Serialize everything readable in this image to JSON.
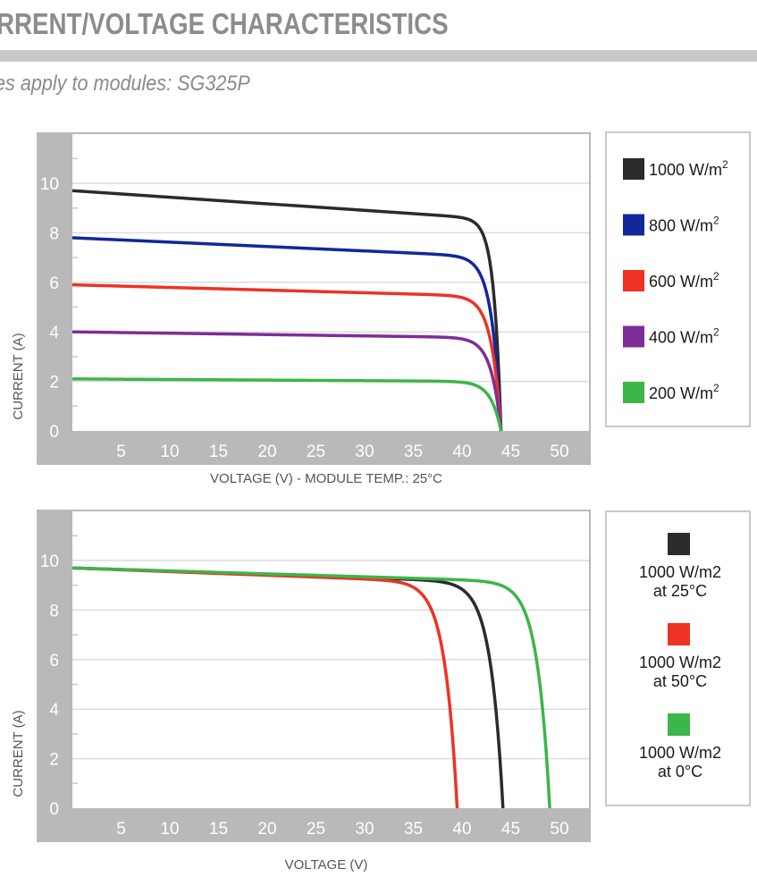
{
  "header": {
    "title": "RRENT/VOLTAGE CHARACTERISTICS",
    "subtitle": "es apply to modules: SG325P"
  },
  "chart_data": [
    {
      "type": "line",
      "xlabel": "VOLTAGE (V) - MODULE TEMP.: 25°C",
      "ylabel": "CURRENT (A)",
      "xlim": [
        0,
        53
      ],
      "ylim": [
        0,
        12
      ],
      "x_ticks": [
        5,
        10,
        15,
        20,
        25,
        30,
        35,
        40,
        45,
        50
      ],
      "y_ticks": [
        0,
        2,
        4,
        6,
        8,
        10
      ],
      "grid": true,
      "legend": "right",
      "series": [
        {
          "name": "1000 W/m",
          "name_sup": "2",
          "color": "#2b2b2e",
          "isc": 9.7,
          "voc": 44,
          "knee": 4.6,
          "dip": 0.12
        },
        {
          "name": "800 W/m",
          "name_sup": "2",
          "color": "#13279a",
          "isc": 7.8,
          "voc": 44,
          "knee": 3.5,
          "dip": 0.1
        },
        {
          "name": "600 W/m",
          "name_sup": "2",
          "color": "#ee3224",
          "isc": 5.9,
          "voc": 44,
          "knee": 3.4,
          "dip": 0.08
        },
        {
          "name": "400 W/m",
          "name_sup": "2",
          "color": "#7f2d96",
          "isc": 4.0,
          "voc": 44,
          "knee": 3.3,
          "dip": 0.06
        },
        {
          "name": "200 W/m",
          "name_sup": "2",
          "color": "#3cb54a",
          "isc": 2.1,
          "voc": 44,
          "knee": 3.2,
          "dip": 0.05
        }
      ]
    },
    {
      "type": "line",
      "xlabel": "VOLTAGE (V)",
      "ylabel": "CURRENT (A)",
      "xlim": [
        0,
        53
      ],
      "ylim": [
        0,
        12
      ],
      "x_ticks": [
        5,
        10,
        15,
        20,
        25,
        30,
        35,
        40,
        45,
        50
      ],
      "y_ticks": [
        0,
        2,
        4,
        6,
        8,
        10
      ],
      "grid": true,
      "legend": "right",
      "series": [
        {
          "name": "1000 W/m2",
          "name2": "at 25°C",
          "color": "#2b2b2e",
          "isc": 9.7,
          "voc": 44.2,
          "knee": 2.6,
          "dip": 0.06
        },
        {
          "name": "1000 W/m2",
          "name2": "at 50°C",
          "color": "#ee3224",
          "isc": 9.7,
          "voc": 39.5,
          "knee": 2.6,
          "dip": 0.06
        },
        {
          "name": "1000 W/m2",
          "name2": "at 0°C",
          "color": "#3cb54a",
          "isc": 9.7,
          "voc": 49,
          "knee": 2.6,
          "dip": 0.06
        }
      ]
    }
  ],
  "colors": {
    "plot_background": "#b9b9b9",
    "panel_border": "#c9c9c9",
    "grid": "#dcdcdc",
    "tick_text": "#ffffff",
    "title_rule": "#c8c8c8"
  }
}
